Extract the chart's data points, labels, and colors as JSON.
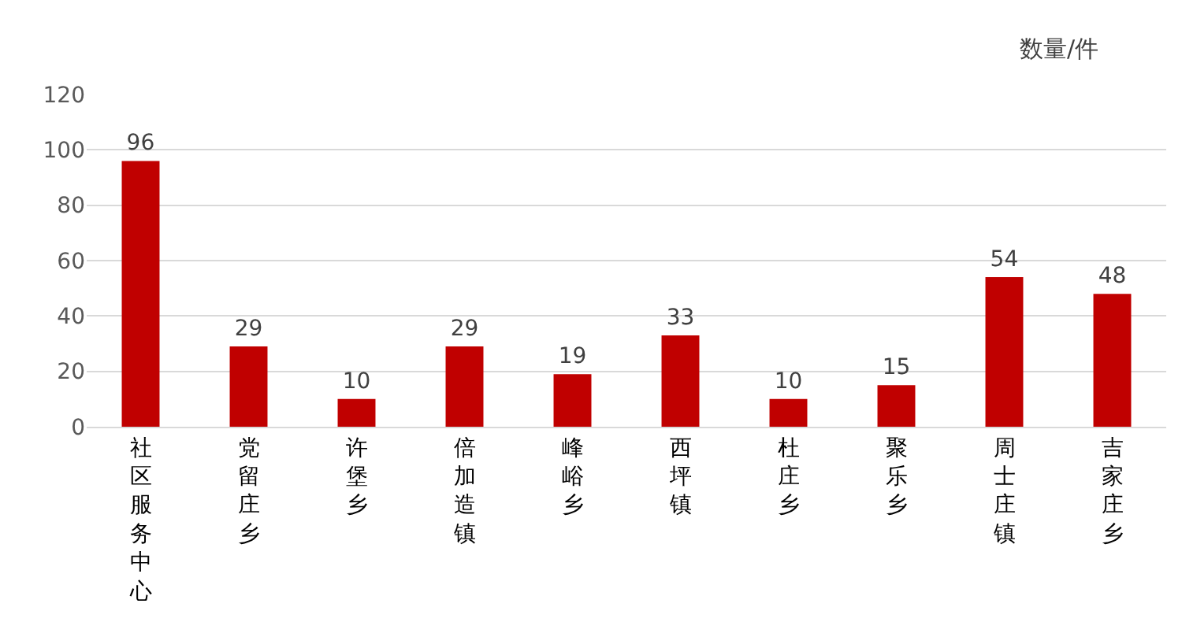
{
  "chart_data": {
    "type": "bar",
    "ylabel": "数量/件",
    "categories": [
      "社区服务中心",
      "党留庄乡",
      "许堡乡",
      "倍加造镇",
      "峰峪乡",
      "西坪镇",
      "杜庄乡",
      "聚乐乡",
      "周士庄镇",
      "吉家庄乡"
    ],
    "values": [
      96,
      29,
      10,
      29,
      19,
      33,
      10,
      15,
      54,
      48
    ],
    "color": "#c00000",
    "ylim": [
      0,
      120
    ],
    "yticks": [
      0,
      20,
      40,
      60,
      80,
      100,
      120
    ],
    "grid": "y",
    "data_labels": true
  }
}
